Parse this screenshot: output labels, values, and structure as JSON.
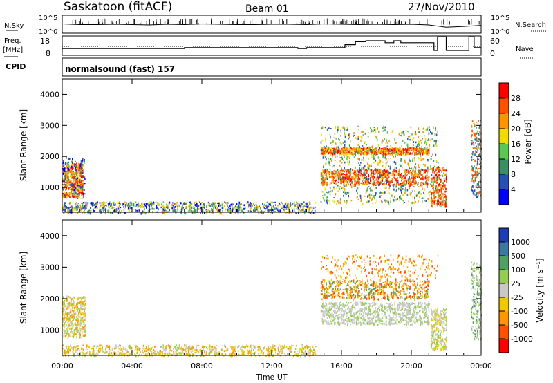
{
  "header": {
    "station": "Saskatoon (fitACF)",
    "beam": "Beam 01",
    "date": "27/Nov/2010"
  },
  "noise_panel": {
    "left_label": "N.Sky",
    "right_label": "N.Search",
    "tick_top": "10^5",
    "tick_bottom": "10^0"
  },
  "freq_panel": {
    "left_label_line1": "Freq.",
    "left_label_line2": "[MHz]",
    "left_ticks": [
      "18",
      "8"
    ],
    "right_label": "Nave",
    "right_ticks": [
      "60",
      "0"
    ]
  },
  "cpid_panel": {
    "left_label": "CPID",
    "mode_text": "normalsound (fast) 157"
  },
  "power_panel": {
    "ylabel": "Slant Range [km]",
    "yticks": [
      "1000",
      "2000",
      "3000",
      "4000"
    ],
    "colorbar_label": "Power [dB]",
    "colorbar_ticks": [
      "4",
      "8",
      "12",
      "16",
      "20",
      "24",
      "28"
    ],
    "colorbar_colors": [
      "#0000ff",
      "#2850b4",
      "#3c8c64",
      "#5ac850",
      "#f0dc00",
      "#ff9600",
      "#ff5000",
      "#ff0000"
    ]
  },
  "velocity_panel": {
    "ylabel": "Slant Range [km]",
    "yticks": [
      "1000",
      "2000",
      "3000",
      "4000"
    ],
    "colorbar_label": "Velocity [m s⁻¹]",
    "colorbar_ticks": [
      "1000",
      "500",
      "100",
      "25",
      "-25",
      "-100",
      "-500",
      "-1000"
    ],
    "colorbar_colors": [
      "#1e3cb4",
      "#3c78a0",
      "#50a064",
      "#96cc50",
      "#c8c8c8",
      "#f0c800",
      "#ff9600",
      "#ff5000",
      "#ff0000"
    ]
  },
  "time_axis": {
    "xlabel": "Time UT",
    "ticks": [
      "00:00",
      "04:00",
      "08:00",
      "12:00",
      "16:00",
      "20:00",
      "00:00"
    ]
  },
  "chart_data": [
    {
      "type": "line",
      "panel": "noise",
      "ylim_log10": [
        0,
        5
      ],
      "xlim_hours": [
        0,
        24
      ],
      "series": [
        {
          "values_log10": [
            2.6,
            2.4,
            2.4,
            2.5,
            2.4,
            2.3,
            2.5,
            2.4,
            2.6,
            2.5,
            2.4,
            2.4,
            2.5,
            2.5,
            2.4,
            2.6,
            2.5,
            2.4,
            2.5,
            2.4,
            2.5,
            2.3,
            1.7,
            1.9,
            2.2
          ]
        }
      ]
    },
    {
      "type": "line",
      "panel": "frequency",
      "ylim": [
        8,
        18
      ],
      "xlim_hours": [
        0,
        24
      ],
      "series": [
        {
          "x": [
            0,
            6,
            7,
            9,
            13,
            13.5,
            14,
            14.8,
            15.5,
            16.2,
            16.8,
            17.4,
            18.5,
            19.0,
            19.4,
            21.3,
            21.5,
            22.0,
            23.3,
            23.6,
            24
          ],
          "values": [
            11.5,
            11.5,
            12.0,
            12.0,
            12.0,
            11.5,
            12.0,
            12.0,
            12.0,
            13.5,
            15.0,
            15.5,
            14.5,
            15.5,
            14.5,
            10.5,
            17.5,
            10.5,
            17.5,
            12.0,
            12.0
          ]
        }
      ]
    }
  ]
}
